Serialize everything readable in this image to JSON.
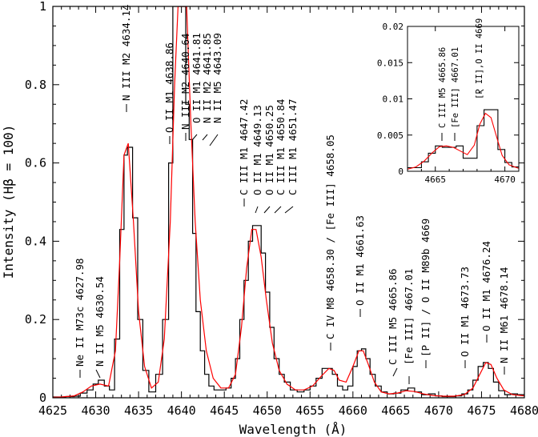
{
  "chart_data": [
    {
      "type": "line",
      "panel": "main",
      "xlabel": "Wavelength (Å)",
      "ylabel": "Intensity (Hβ = 100)",
      "xlim": [
        4625,
        4680
      ],
      "ylim": [
        0,
        1
      ],
      "x_ticks": [
        "4625",
        "4630",
        "4635",
        "4640",
        "4645",
        "4650",
        "4655",
        "4660",
        "4665",
        "4670",
        "4675",
        "4680"
      ],
      "y_ticks": [
        "0",
        "0.2",
        "0.4",
        "0.6",
        "0.8",
        "1"
      ],
      "grid": false,
      "series": [
        {
          "color": "#000000",
          "style": "step",
          "x": [
            4624.5,
            4625.5,
            4626.5,
            4627.5,
            4628.2,
            4629.0,
            4629.7,
            4630.3,
            4631.0,
            4631.6,
            4632.2,
            4632.8,
            4633.3,
            4633.7,
            4634.3,
            4634.9,
            4635.5,
            4636.2,
            4637.0,
            4637.8,
            4638.5,
            4639.0,
            4639.5,
            4640.0,
            4640.5,
            4640.9,
            4641.3,
            4641.7,
            4642.2,
            4642.7,
            4643.2,
            4643.8,
            4644.5,
            4645.2,
            4645.8,
            4646.3,
            4646.8,
            4647.3,
            4647.8,
            4648.3,
            4648.8,
            4649.3,
            4649.8,
            4650.3,
            4650.8,
            4651.4,
            4652.0,
            4652.7,
            4653.5,
            4654.3,
            4655.0,
            4655.7,
            4656.4,
            4657.0,
            4657.6,
            4658.2,
            4658.8,
            4659.4,
            4660.0,
            4660.5,
            4661.0,
            4661.5,
            4662.0,
            4662.6,
            4663.3,
            4664.0,
            4664.8,
            4665.6,
            4666.4,
            4667.2,
            4668.0,
            4668.8,
            4669.6,
            4670.4,
            4671.2,
            4672.0,
            4672.7,
            4673.4,
            4674.0,
            4674.6,
            4675.2,
            4675.8,
            4676.4,
            4677.0,
            4677.7,
            4678.4,
            4679.2,
            4680.0
          ],
          "y": [
            0.002,
            0.002,
            0.003,
            0.004,
            0.012,
            0.02,
            0.035,
            0.045,
            0.03,
            0.02,
            0.15,
            0.43,
            0.62,
            0.64,
            0.46,
            0.2,
            0.07,
            0.015,
            0.06,
            0.2,
            0.6,
            1.0,
            1.0,
            1.0,
            0.75,
            0.66,
            0.42,
            0.22,
            0.12,
            0.06,
            0.03,
            0.02,
            0.02,
            0.025,
            0.05,
            0.1,
            0.2,
            0.3,
            0.4,
            0.44,
            0.44,
            0.37,
            0.27,
            0.18,
            0.1,
            0.06,
            0.04,
            0.02,
            0.015,
            0.02,
            0.03,
            0.05,
            0.075,
            0.075,
            0.06,
            0.03,
            0.02,
            0.03,
            0.08,
            0.12,
            0.125,
            0.1,
            0.06,
            0.03,
            0.015,
            0.01,
            0.012,
            0.02,
            0.025,
            0.015,
            0.008,
            0.01,
            0.005,
            0.003,
            0.003,
            0.005,
            0.01,
            0.02,
            0.045,
            0.08,
            0.09,
            0.075,
            0.04,
            0.018,
            0.008,
            0.01,
            0.008,
            0.008
          ]
        },
        {
          "color": "#ff0000",
          "style": "smooth",
          "x": [
            4624.5,
            4626,
            4627.5,
            4628.5,
            4629.5,
            4630.5,
            4631.5,
            4632.3,
            4632.8,
            4633.3,
            4633.8,
            4634.4,
            4635.0,
            4635.7,
            4636.5,
            4637.3,
            4638.0,
            4638.7,
            4639.2,
            4639.6,
            4640.1,
            4640.6,
            4641.1,
            4641.6,
            4642.2,
            4642.9,
            4643.7,
            4644.6,
            4645.5,
            4646.3,
            4647.0,
            4647.6,
            4648.2,
            4648.7,
            4649.3,
            4649.9,
            4650.6,
            4651.4,
            4652.3,
            4653.3,
            4654.3,
            4655.3,
            4656.3,
            4657.2,
            4657.8,
            4658.4,
            4659.2,
            4660.0,
            4660.7,
            4661.2,
            4661.8,
            4662.5,
            4663.3,
            4664.2,
            4665.2,
            4666.2,
            4667.2,
            4668.2,
            4669.3,
            4670.5,
            4671.8,
            4673.0,
            4674.0,
            4674.8,
            4675.5,
            4676.1,
            4676.8,
            4677.6,
            4678.6,
            4680.0
          ],
          "y": [
            0.001,
            0.002,
            0.005,
            0.015,
            0.03,
            0.035,
            0.03,
            0.12,
            0.35,
            0.62,
            0.65,
            0.45,
            0.22,
            0.08,
            0.025,
            0.04,
            0.15,
            0.45,
            0.8,
            1.0,
            1.0,
            1.0,
            0.7,
            0.45,
            0.25,
            0.12,
            0.05,
            0.025,
            0.025,
            0.06,
            0.18,
            0.33,
            0.43,
            0.43,
            0.36,
            0.25,
            0.14,
            0.07,
            0.035,
            0.02,
            0.02,
            0.03,
            0.055,
            0.075,
            0.07,
            0.045,
            0.04,
            0.08,
            0.12,
            0.12,
            0.085,
            0.04,
            0.015,
            0.01,
            0.012,
            0.018,
            0.016,
            0.01,
            0.006,
            0.004,
            0.004,
            0.008,
            0.025,
            0.06,
            0.09,
            0.085,
            0.05,
            0.02,
            0.008,
            0.005
          ]
        }
      ],
      "annotations": [
        {
          "text": "Ne II M73c 4627.98",
          "x": 4627.98
        },
        {
          "text": "N II M5 4630.54",
          "x": 4630.54
        },
        {
          "text": "N III M2 4634.14",
          "x": 4634.14
        },
        {
          "text": "O II M1 4638.86",
          "x": 4638.86
        },
        {
          "text": "N III M2 4640.64",
          "x": 4640.64
        },
        {
          "text": "O II M1 4641.81",
          "x": 4641.81
        },
        {
          "text": "N II M2 4641.85",
          "x": 4641.85
        },
        {
          "text": "N II M5 4643.09",
          "x": 4643.09
        },
        {
          "text": "C III M1 4647.42",
          "x": 4647.42
        },
        {
          "text": "O II M1 4649.13",
          "x": 4649.13
        },
        {
          "text": "O II M1 4650.25",
          "x": 4650.25
        },
        {
          "text": "C III M1 4650.84",
          "x": 4650.84
        },
        {
          "text": "C III M1 4651.47",
          "x": 4651.47
        },
        {
          "text": "C IV M8 4658.30 / [Fe III] 4658.05",
          "x": 4658.3
        },
        {
          "text": "O II M1 4661.63",
          "x": 4661.63
        },
        {
          "text": "C III M5 4665.86",
          "x": 4665.86
        },
        {
          "text": "[Fe III] 4667.01",
          "x": 4667.01
        },
        {
          "text": "[P II] / O II M89b 4669",
          "x": 4669
        },
        {
          "text": "O II M1 4673.73",
          "x": 4673.73
        },
        {
          "text": "O II M1 4676.24",
          "x": 4676.24
        },
        {
          "text": "N II M61 4678.14",
          "x": 4678.14
        }
      ]
    },
    {
      "type": "line",
      "panel": "inset",
      "xlim": [
        4663,
        4671
      ],
      "ylim": [
        0,
        0.02
      ],
      "x_ticks": [
        "4665",
        "4670"
      ],
      "y_ticks": [
        "0",
        "0.005",
        "0.01",
        "0.015",
        "0.02"
      ],
      "grid": false,
      "series": [
        {
          "color": "#000000",
          "style": "step",
          "x": [
            4663.0,
            4663.5,
            4664.0,
            4664.5,
            4665.0,
            4665.5,
            4666.0,
            4666.5,
            4667.0,
            4667.5,
            4668.0,
            4668.5,
            4669.0,
            4669.5,
            4670.0,
            4670.5,
            4671.0
          ],
          "y": [
            0.0005,
            0.0005,
            0.0013,
            0.0025,
            0.0035,
            0.0033,
            0.0033,
            0.0035,
            0.0018,
            0.0018,
            0.0063,
            0.0085,
            0.0085,
            0.003,
            0.0012,
            0.0006,
            0.0005
          ]
        },
        {
          "color": "#ff0000",
          "style": "smooth",
          "x": [
            4663.0,
            4663.6,
            4664.2,
            4664.8,
            4665.3,
            4665.8,
            4666.3,
            4666.8,
            4667.3,
            4667.8,
            4668.2,
            4668.6,
            4669.0,
            4669.4,
            4669.8,
            4670.3,
            4671.0
          ],
          "y": [
            0.0003,
            0.0006,
            0.0014,
            0.0026,
            0.0034,
            0.0035,
            0.0033,
            0.0028,
            0.0023,
            0.0036,
            0.0065,
            0.008,
            0.0074,
            0.0048,
            0.0022,
            0.0009,
            0.0004
          ]
        }
      ],
      "annotations": [
        {
          "text": "C III M5 4665.86",
          "x": 4665.86
        },
        {
          "text": "[Fe III] 4667.01",
          "x": 4667.01
        },
        {
          "text": "[P II],O II 4669",
          "x": 4669
        }
      ]
    }
  ]
}
